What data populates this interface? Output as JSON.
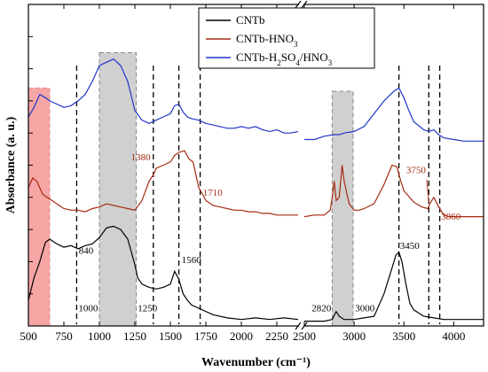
{
  "chart_data": {
    "type": "line",
    "xlabel": "Wavenumber (cm⁻¹)",
    "ylabel": "Absorbance (a. u.)",
    "x_break": [
      2400,
      2500
    ],
    "segments": [
      {
        "xlim": [
          500,
          2400
        ],
        "ticks": [
          500,
          750,
          1000,
          1250,
          1500,
          1750,
          2000,
          2250
        ]
      },
      {
        "xlim": [
          2500,
          4300
        ],
        "ticks": [
          2500,
          3000,
          3500,
          4000
        ]
      }
    ],
    "ylim": [
      0,
      10
    ],
    "yticks": 10,
    "legend_position": "top-right",
    "legend": [
      {
        "label_parts": [
          "CNTb"
        ]
      },
      {
        "label_parts": [
          "CNTb-HNO",
          "3",
          ""
        ]
      },
      {
        "label_parts": [
          "CNTb-H",
          "2",
          "SO",
          "4",
          "/HNO",
          "3"
        ]
      }
    ],
    "series": [
      {
        "color": "#000000",
        "x": [
          500,
          540,
          580,
          620,
          650,
          700,
          750,
          800,
          850,
          900,
          950,
          1000,
          1050,
          1100,
          1150,
          1200,
          1250,
          1270,
          1300,
          1350,
          1400,
          1450,
          1500,
          1530,
          1560,
          1590,
          1620,
          1650,
          1700,
          1800,
          1900,
          2000,
          2100,
          2200,
          2300,
          2400,
          2500,
          2600,
          2700,
          2780,
          2820,
          2850,
          2900,
          2950,
          3000,
          3100,
          3200,
          3300,
          3380,
          3420,
          3450,
          3480,
          3520,
          3560,
          3600,
          3700,
          3800,
          3900,
          4000,
          4100,
          4200,
          4300
        ],
        "y": [
          0.8,
          1.5,
          2.0,
          2.6,
          2.7,
          2.55,
          2.45,
          2.5,
          2.4,
          2.5,
          2.55,
          2.75,
          3.05,
          3.1,
          3.0,
          2.7,
          1.9,
          1.5,
          1.3,
          1.2,
          1.15,
          1.2,
          1.3,
          1.7,
          1.45,
          1.0,
          0.8,
          0.65,
          0.55,
          0.35,
          0.25,
          0.2,
          0.25,
          0.2,
          0.25,
          0.2,
          0.15,
          0.15,
          0.15,
          0.2,
          0.45,
          0.3,
          0.2,
          0.2,
          0.2,
          0.25,
          0.3,
          1.0,
          1.8,
          2.2,
          2.3,
          2.0,
          1.3,
          0.7,
          0.5,
          0.3,
          0.25,
          0.2,
          0.2,
          0.2,
          0.2,
          0.2
        ]
      },
      {
        "color": "#a52a10",
        "x": [
          500,
          530,
          560,
          600,
          650,
          700,
          750,
          800,
          850,
          900,
          950,
          1000,
          1050,
          1100,
          1150,
          1200,
          1250,
          1300,
          1350,
          1380,
          1400,
          1450,
          1500,
          1530,
          1560,
          1600,
          1630,
          1660,
          1700,
          1720,
          1750,
          1800,
          1850,
          1900,
          1950,
          2000,
          2050,
          2100,
          2150,
          2200,
          2250,
          2300,
          2350,
          2400,
          2500,
          2600,
          2700,
          2760,
          2780,
          2800,
          2820,
          2850,
          2880,
          2900,
          2950,
          3000,
          3050,
          3100,
          3200,
          3300,
          3380,
          3430,
          3460,
          3500,
          3600,
          3680,
          3740,
          3760,
          3800,
          3850,
          3880,
          3900,
          3950,
          4000,
          4100,
          4200,
          4300
        ],
        "y": [
          4.3,
          4.6,
          4.5,
          4.1,
          3.95,
          3.8,
          3.65,
          3.6,
          3.6,
          3.55,
          3.65,
          3.7,
          3.8,
          3.75,
          3.7,
          3.65,
          3.6,
          3.9,
          4.5,
          4.7,
          4.9,
          5.0,
          5.1,
          5.3,
          5.4,
          5.45,
          5.2,
          5.1,
          4.3,
          4.15,
          3.9,
          3.75,
          3.7,
          3.65,
          3.6,
          3.6,
          3.55,
          3.55,
          3.5,
          3.5,
          3.45,
          3.45,
          3.45,
          3.45,
          3.4,
          3.45,
          3.45,
          3.6,
          4.0,
          4.5,
          3.9,
          4.0,
          5.0,
          4.5,
          3.8,
          3.6,
          3.6,
          3.65,
          3.8,
          4.4,
          5.0,
          4.95,
          4.6,
          4.2,
          3.85,
          3.7,
          3.65,
          3.8,
          4.0,
          3.7,
          3.55,
          3.45,
          3.4,
          3.4,
          3.4,
          3.4,
          3.4
        ]
      },
      {
        "color": "#1f35c8",
        "x": [
          500,
          540,
          580,
          620,
          650,
          700,
          750,
          800,
          850,
          900,
          950,
          1000,
          1050,
          1100,
          1150,
          1200,
          1250,
          1300,
          1350,
          1400,
          1450,
          1500,
          1530,
          1560,
          1590,
          1620,
          1650,
          1700,
          1750,
          1800,
          1850,
          1900,
          1950,
          2000,
          2050,
          2100,
          2150,
          2200,
          2250,
          2300,
          2350,
          2400,
          2500,
          2600,
          2700,
          2800,
          2850,
          2900,
          3000,
          3100,
          3200,
          3300,
          3400,
          3450,
          3500,
          3550,
          3600,
          3700,
          3750,
          3800,
          3850,
          3900,
          4000,
          4100,
          4200,
          4300
        ],
        "y": [
          6.5,
          6.8,
          7.2,
          7.1,
          7.0,
          6.9,
          6.8,
          6.85,
          7.0,
          7.2,
          7.6,
          8.1,
          8.2,
          8.3,
          8.1,
          7.6,
          6.7,
          6.4,
          6.3,
          6.4,
          6.5,
          6.6,
          6.85,
          6.9,
          6.65,
          6.5,
          6.45,
          6.4,
          6.3,
          6.25,
          6.2,
          6.15,
          6.15,
          6.2,
          6.15,
          6.2,
          6.1,
          6.05,
          6.1,
          6.0,
          6.0,
          6.05,
          5.8,
          5.8,
          5.9,
          5.95,
          5.95,
          6.0,
          6.05,
          6.2,
          6.6,
          7.0,
          7.3,
          7.4,
          7.1,
          6.7,
          6.35,
          6.1,
          6.05,
          6.1,
          5.95,
          5.85,
          5.8,
          5.75,
          5.75,
          5.75
        ]
      }
    ],
    "dashed_lines": [
      840,
      1380,
      1560,
      1710,
      3450,
      3750,
      3860
    ],
    "shaded_regions": [
      {
        "x0": 500,
        "x1": 650,
        "y0": 0,
        "y1": 7.4,
        "fill": "#f7a6a6",
        "stroke": "#e88"
      },
      {
        "x0": 1000,
        "x1": 1260,
        "y0": 0,
        "y1": 8.5,
        "fill": "#d0d0d0",
        "stroke": "#888"
      },
      {
        "x0": 2780,
        "x1": 2990,
        "y0": 0,
        "y1": 7.3,
        "fill": "#d0d0d0",
        "stroke": "#888"
      }
    ],
    "annotations": [
      {
        "text": "840",
        "x": 855,
        "y": 2.25,
        "color": "#000000"
      },
      {
        "text": "1000",
        "x": 990,
        "y": 0.45,
        "color": "#000000",
        "anchor": "end"
      },
      {
        "text": "1250",
        "x": 1270,
        "y": 0.45,
        "color": "#000000"
      },
      {
        "text": "1560",
        "x": 1580,
        "y": 1.95,
        "color": "#000000"
      },
      {
        "text": "1380",
        "x": 1360,
        "y": 5.15,
        "color": "#a52a10",
        "anchor": "end"
      },
      {
        "text": "1710",
        "x": 1730,
        "y": 4.05,
        "color": "#a52a10"
      },
      {
        "text": "2820",
        "x": 2770,
        "y": 0.45,
        "color": "#000000",
        "anchor": "end"
      },
      {
        "text": "3000",
        "x": 3010,
        "y": 0.45,
        "color": "#000000"
      },
      {
        "text": "3450",
        "x": 3460,
        "y": 2.4,
        "color": "#000000"
      },
      {
        "text": "3750",
        "x": 3720,
        "y": 4.75,
        "color": "#a52a10",
        "anchor": "end"
      },
      {
        "text": "3860",
        "x": 3875,
        "y": 3.3,
        "color": "#a52a10"
      }
    ]
  }
}
